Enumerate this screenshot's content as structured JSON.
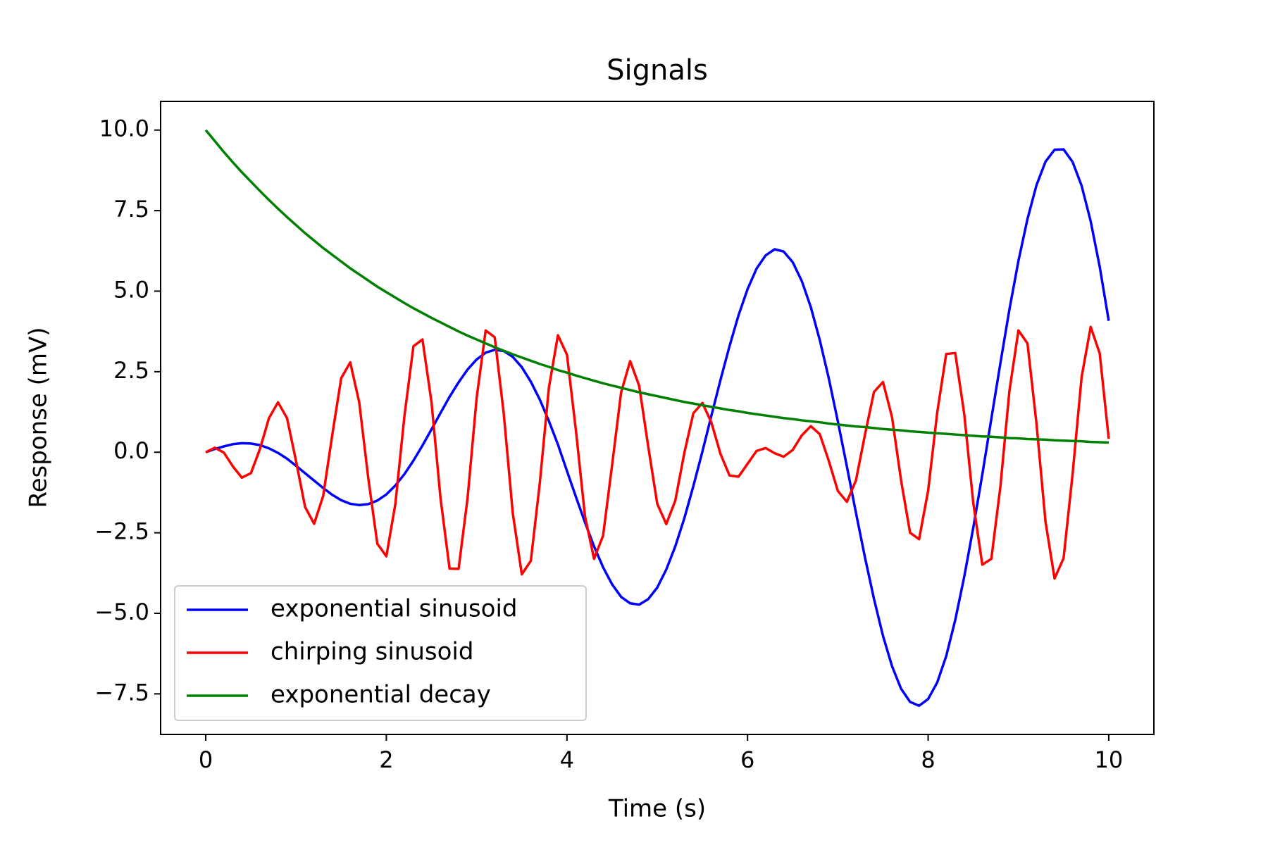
{
  "chart_data": {
    "type": "line",
    "title": "Signals",
    "x_label": "Time (s)",
    "y_label": "Response (mV)",
    "x": [
      0,
      0.1,
      0.2,
      0.3,
      0.4,
      0.5,
      0.6,
      0.7,
      0.8,
      0.9,
      1,
      1.1,
      1.2,
      1.3,
      1.4,
      1.5,
      1.6,
      1.7,
      1.8,
      1.9,
      2,
      2.1,
      2.2,
      2.3,
      2.4,
      2.5,
      2.6,
      2.7,
      2.8,
      2.9,
      3,
      3.1,
      3.2,
      3.3,
      3.4,
      3.5,
      3.6,
      3.7,
      3.8,
      3.9,
      4,
      4.1,
      4.2,
      4.3,
      4.4,
      4.5,
      4.6,
      4.7,
      4.8,
      4.9,
      5,
      5.1,
      5.2,
      5.3,
      5.4,
      5.5,
      5.6,
      5.7,
      5.8,
      5.9,
      6,
      6.1,
      6.2,
      6.3,
      6.4,
      6.5,
      6.6,
      6.7,
      6.8,
      6.9,
      7,
      7.1,
      7.2,
      7.3,
      7.4,
      7.5,
      7.6,
      7.7,
      7.8,
      7.9,
      8,
      8.1,
      8.2,
      8.3,
      8.4,
      8.5,
      8.6,
      8.7,
      8.8,
      8.9,
      9,
      9.1,
      9.2,
      9.3,
      9.4,
      9.5,
      9.6,
      9.7,
      9.8,
      9.9,
      10
    ],
    "series": [
      {
        "name": "exponential sinusoid",
        "color": "#0000ff",
        "values": [
          0,
          0.1,
          0.18,
          0.25,
          0.28,
          0.27,
          0.22,
          0.12,
          -0.02,
          -0.2,
          -0.42,
          -0.65,
          -0.88,
          -1.11,
          -1.32,
          -1.49,
          -1.6,
          -1.64,
          -1.61,
          -1.5,
          -1.31,
          -1.03,
          -0.68,
          -0.26,
          0.21,
          0.71,
          1.22,
          1.72,
          2.17,
          2.57,
          2.88,
          3.09,
          3.18,
          3.14,
          2.96,
          2.64,
          2.19,
          1.63,
          0.97,
          0.24,
          -0.58,
          -1.39,
          -2.18,
          -2.92,
          -3.57,
          -4.1,
          -4.49,
          -4.69,
          -4.73,
          -4.56,
          -4.2,
          -3.64,
          -2.92,
          -2.05,
          -1.05,
          0.02,
          1.14,
          2.24,
          3.29,
          4.25,
          5.06,
          5.7,
          6.11,
          6.3,
          6.23,
          5.9,
          5.32,
          4.51,
          3.48,
          2.29,
          0.96,
          -0.44,
          -1.87,
          -3.26,
          -4.55,
          -5.7,
          -6.64,
          -7.34,
          -7.75,
          -7.87,
          -7.66,
          -7.15,
          -6.33,
          -5.21,
          -3.86,
          -2.34,
          -0.69,
          1.04,
          2.76,
          4.43,
          5.94,
          7.24,
          8.29,
          9.02,
          9.39,
          9.4,
          9.01,
          8.27,
          7.17,
          5.76,
          4.08
        ]
      },
      {
        "name": "chirping sinusoid",
        "color": "#ff0000",
        "values": [
          0,
          0.14,
          -0.01,
          -0.44,
          -0.79,
          -0.65,
          0.1,
          1.06,
          1.55,
          1.06,
          -0.28,
          -1.7,
          -2.22,
          -1.36,
          0.52,
          2.3,
          2.79,
          1.54,
          -0.81,
          -2.84,
          -3.23,
          -1.6,
          1.12,
          3.29,
          3.5,
          1.55,
          -1.43,
          -3.61,
          -3.62,
          -1.41,
          1.69,
          3.78,
          3.57,
          1.2,
          -1.89,
          -3.79,
          -3.37,
          -0.94,
          2,
          3.63,
          3.03,
          0.66,
          -1.99,
          -3.31,
          -2.59,
          -0.4,
          1.86,
          2.83,
          2.06,
          0.18,
          -1.6,
          -2.23,
          -1.5,
          -0.02,
          1.21,
          1.53,
          0.92,
          -0.05,
          -0.72,
          -0.76,
          -0.36,
          0.04,
          0.13,
          -0.03,
          -0.14,
          0.07,
          0.52,
          0.81,
          0.56,
          -0.27,
          -1.2,
          -1.54,
          -0.88,
          0.54,
          1.87,
          2.18,
          1.09,
          -0.87,
          -2.5,
          -2.7,
          -1.19,
          1.22,
          3.05,
          3.08,
          1.18,
          -1.58,
          -3.49,
          -3.31,
          -1.07,
          1.9,
          3.78,
          3.38,
          0.89,
          -2.16,
          -3.92,
          -3.29,
          -0.67,
          2.34,
          3.89,
          3.07,
          0.42
        ]
      },
      {
        "name": "exponential decay",
        "color": "#008000",
        "values": [
          10,
          9.66,
          9.32,
          9,
          8.69,
          8.4,
          8.11,
          7.83,
          7.56,
          7.3,
          7.05,
          6.8,
          6.57,
          6.34,
          6.13,
          5.92,
          5.71,
          5.52,
          5.33,
          5.14,
          4.97,
          4.8,
          4.63,
          4.47,
          4.32,
          4.17,
          4.03,
          3.89,
          3.75,
          3.62,
          3.5,
          3.38,
          3.26,
          3.15,
          3.04,
          2.94,
          2.84,
          2.74,
          2.65,
          2.55,
          2.47,
          2.38,
          2.3,
          2.22,
          2.14,
          2.07,
          2,
          1.93,
          1.86,
          1.8,
          1.74,
          1.68,
          1.62,
          1.56,
          1.51,
          1.46,
          1.41,
          1.36,
          1.31,
          1.27,
          1.22,
          1.18,
          1.14,
          1.1,
          1.06,
          1.03,
          0.99,
          0.96,
          0.93,
          0.89,
          0.86,
          0.83,
          0.8,
          0.78,
          0.75,
          0.72,
          0.7,
          0.68,
          0.65,
          0.63,
          0.61,
          0.59,
          0.57,
          0.55,
          0.53,
          0.51,
          0.49,
          0.48,
          0.46,
          0.44,
          0.43,
          0.41,
          0.4,
          0.39,
          0.37,
          0.36,
          0.35,
          0.34,
          0.32,
          0.31,
          0.3
        ]
      }
    ],
    "xlim": [
      -0.5,
      10.5
    ],
    "ylim": [
      -8.76,
      10.89
    ],
    "xticks": [
      0,
      2,
      4,
      6,
      8,
      10
    ],
    "yticks": [
      {
        "value": -7.5,
        "label": "−7.5"
      },
      {
        "value": -5,
        "label": "−5.0"
      },
      {
        "value": -2.5,
        "label": "−2.5"
      },
      {
        "value": 0,
        "label": "0.0"
      },
      2.5,
      {
        "value": 5,
        "label": "5.0"
      },
      7.5,
      {
        "value": 10,
        "label": "10.0"
      }
    ],
    "grid": false,
    "legend": "lower left"
  }
}
